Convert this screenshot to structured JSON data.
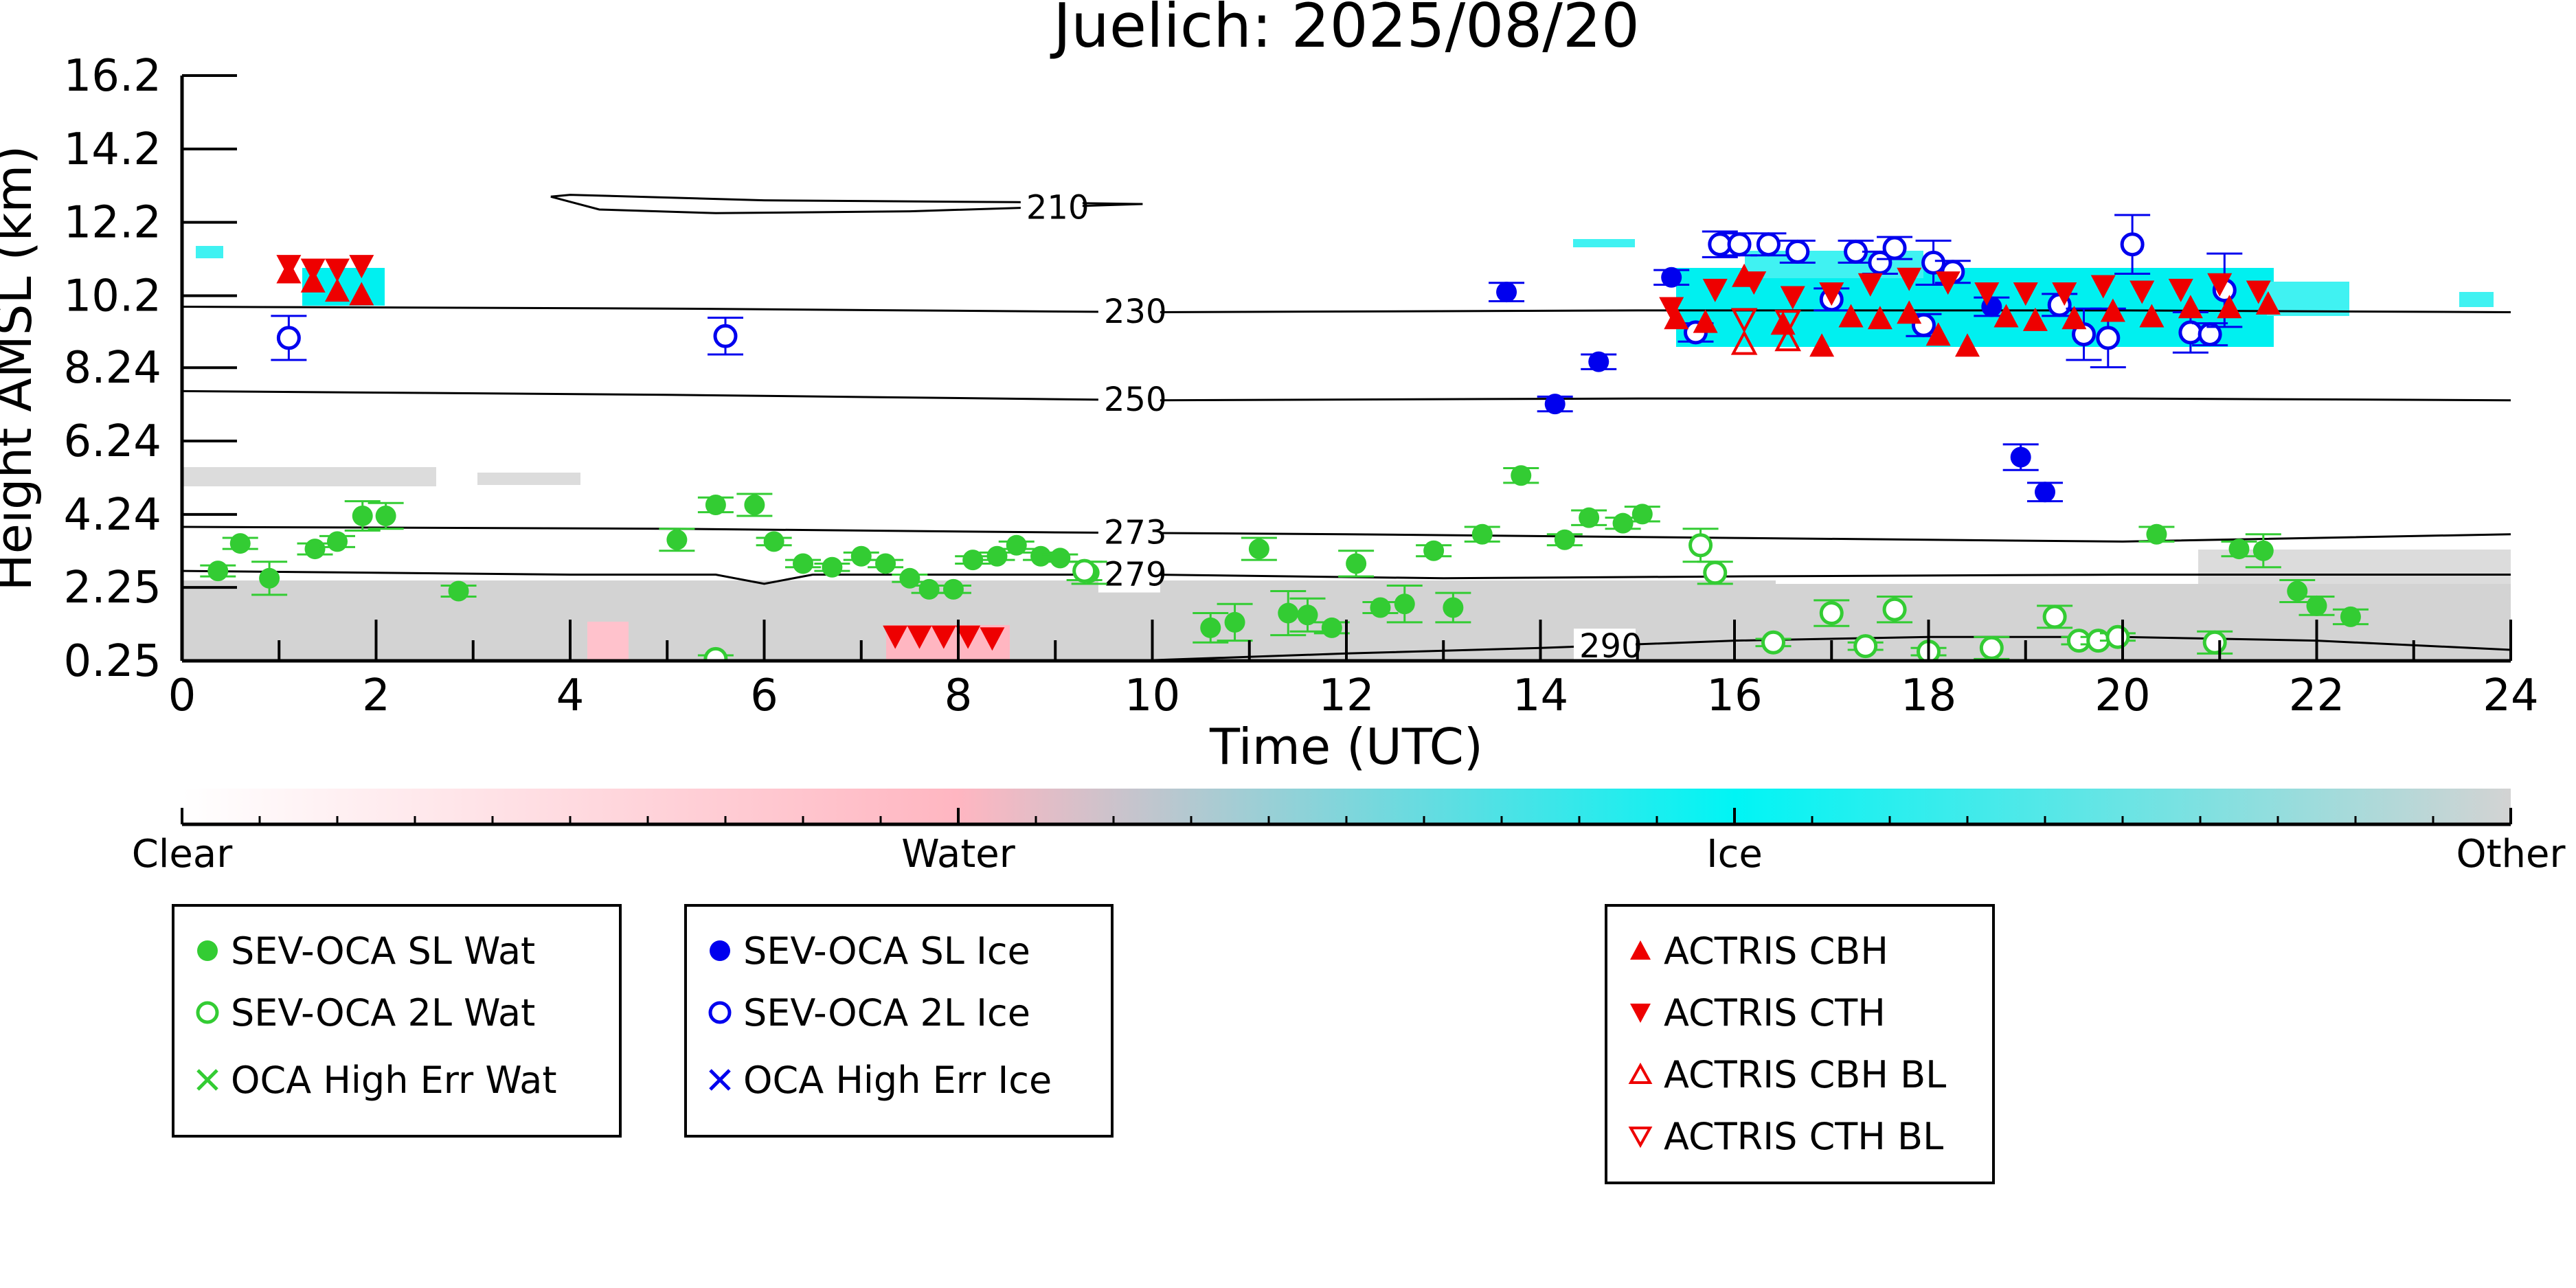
{
  "chart_data": {
    "type": "scatter",
    "title": "Juelich: 2025/08/20",
    "xlabel": "Time (UTC)",
    "ylabel": "Height AMSL (km)",
    "xlim": [
      0,
      24
    ],
    "ylim": [
      0.25,
      16.2
    ],
    "x_ticks": [
      0,
      2,
      4,
      6,
      8,
      10,
      12,
      14,
      16,
      18,
      20,
      22,
      24
    ],
    "y_ticks": [
      0.25,
      2.25,
      4.24,
      6.24,
      8.24,
      10.2,
      12.2,
      14.2,
      16.2
    ],
    "y_tick_labels": [
      "0.25",
      "2.25",
      "4.24",
      "6.24",
      "8.24",
      "10.2",
      "12.2",
      "14.2",
      "16.2"
    ],
    "grid": false,
    "colorbar": {
      "labels": [
        "Clear",
        "Water",
        "Ice",
        "Other"
      ],
      "colors": [
        "#ffffff",
        "#ffb6c1",
        "#00f5f5",
        "#d3d3d3"
      ]
    },
    "temperature_contours": [
      {
        "label": "210",
        "label_x": 8.7,
        "points": [
          [
            3.8,
            12.9
          ],
          [
            4.3,
            12.55
          ],
          [
            5.5,
            12.45
          ],
          [
            7.5,
            12.5
          ],
          [
            9.9,
            12.7
          ],
          [
            8.6,
            12.75
          ],
          [
            6.0,
            12.8
          ],
          [
            4.0,
            12.95
          ],
          [
            3.8,
            12.9
          ]
        ]
      },
      {
        "label": "230",
        "label_x": 9.5,
        "points": [
          [
            0,
            9.9
          ],
          [
            5,
            9.85
          ],
          [
            10,
            9.75
          ],
          [
            15,
            9.8
          ],
          [
            20,
            9.8
          ],
          [
            24,
            9.75
          ]
        ]
      },
      {
        "label": "250",
        "label_x": 9.5,
        "points": [
          [
            0,
            7.6
          ],
          [
            5,
            7.5
          ],
          [
            10,
            7.35
          ],
          [
            15,
            7.4
          ],
          [
            20,
            7.4
          ],
          [
            24,
            7.35
          ]
        ]
      },
      {
        "label": "273",
        "label_x": 9.5,
        "points": [
          [
            0,
            3.9
          ],
          [
            5,
            3.85
          ],
          [
            9,
            3.75
          ],
          [
            12,
            3.7
          ],
          [
            16,
            3.6
          ],
          [
            20,
            3.5
          ],
          [
            24,
            3.7
          ]
        ]
      },
      {
        "label": "279",
        "label_x": 9.5,
        "points": [
          [
            0,
            2.7
          ],
          [
            4,
            2.6
          ],
          [
            5.5,
            2.6
          ],
          [
            6,
            2.35
          ],
          [
            6.5,
            2.6
          ],
          [
            10,
            2.6
          ],
          [
            13,
            2.5
          ],
          [
            16,
            2.55
          ],
          [
            20,
            2.6
          ],
          [
            24,
            2.6
          ]
        ]
      },
      {
        "label": "290",
        "label_x": 14.4,
        "points": [
          [
            9.8,
            0.25
          ],
          [
            12,
            0.45
          ],
          [
            14,
            0.6
          ],
          [
            16,
            0.8
          ],
          [
            18,
            0.9
          ],
          [
            20,
            0.9
          ],
          [
            22,
            0.8
          ],
          [
            24,
            0.55
          ]
        ]
      }
    ],
    "series": [
      {
        "name": "SEV-OCA SL Wat",
        "marker": "filled-circle",
        "color": "#33cc33",
        "x": [
          0.37,
          0.6,
          0.9,
          1.37,
          1.6,
          1.86,
          2.1,
          2.85,
          5.1,
          5.5,
          5.9,
          6.1,
          6.4,
          6.7,
          7.0,
          7.25,
          7.5,
          7.7,
          7.95,
          8.15,
          8.4,
          8.6,
          8.85,
          9.05,
          9.35,
          10.6,
          10.85,
          11.1,
          11.4,
          11.6,
          11.85,
          12.1,
          12.35,
          12.6,
          12.9,
          13.1,
          13.4,
          13.8,
          14.25,
          14.5,
          14.85,
          15.05,
          20.35,
          21.2,
          21.45,
          21.8,
          22.0,
          22.35
        ],
        "y": [
          2.7,
          3.45,
          2.5,
          3.3,
          3.5,
          4.2,
          4.2,
          2.15,
          3.55,
          4.5,
          4.5,
          3.5,
          2.9,
          2.8,
          3.1,
          2.9,
          2.5,
          2.2,
          2.2,
          3.0,
          3.1,
          3.4,
          3.1,
          3.05,
          2.65,
          1.15,
          1.3,
          3.3,
          1.55,
          1.5,
          1.15,
          2.9,
          1.7,
          1.8,
          3.25,
          1.7,
          3.7,
          5.3,
          3.55,
          4.15,
          4.0,
          4.25,
          3.7,
          3.3,
          3.25,
          2.15,
          1.75,
          1.45
        ],
        "yerr": [
          0.15,
          0.15,
          0.45,
          0.15,
          0.15,
          0.4,
          0.35,
          0.15,
          0.3,
          0.2,
          0.3,
          0.1,
          0.1,
          0.1,
          0.1,
          0.1,
          0.1,
          0.1,
          0.1,
          0.1,
          0.1,
          0.1,
          0.1,
          0.1,
          0.3,
          0.4,
          0.5,
          0.3,
          0.6,
          0.45,
          0.15,
          0.35,
          0.15,
          0.5,
          0.15,
          0.4,
          0.2,
          0.2,
          0.15,
          0.2,
          0.15,
          0.2,
          0.2,
          0.2,
          0.45,
          0.3,
          0.25,
          0.2
        ]
      },
      {
        "name": "SEV-OCA 2L Wat",
        "marker": "open-circle",
        "color": "#33cc33",
        "x": [
          5.5,
          9.3,
          15.65,
          15.8,
          16.4,
          17.0,
          17.35,
          17.65,
          18.0,
          18.65,
          19.3,
          19.55,
          19.75,
          19.95,
          20.95
        ],
        "y": [
          0.3,
          2.7,
          3.4,
          2.65,
          0.75,
          1.55,
          0.65,
          1.65,
          0.5,
          0.6,
          1.45,
          0.8,
          0.8,
          0.9,
          0.75
        ],
        "yerr": [
          0.1,
          0.25,
          0.45,
          0.3,
          0.1,
          0.35,
          0.1,
          0.35,
          0.1,
          0.3,
          0.3,
          0.1,
          0.1,
          0.1,
          0.3
        ]
      },
      {
        "name": "OCA High Err Wat",
        "marker": "x",
        "color": "#33cc33",
        "x": [],
        "y": []
      },
      {
        "name": "SEV-OCA SL Ice",
        "marker": "filled-circle",
        "color": "#0000ee",
        "x": [
          13.65,
          14.15,
          14.6,
          15.35,
          18.65,
          18.95,
          19.2
        ],
        "y": [
          10.3,
          7.25,
          8.4,
          10.7,
          9.9,
          5.8,
          4.85
        ],
        "yerr": [
          0.25,
          0.2,
          0.2,
          0.2,
          0.25,
          0.35,
          0.25
        ]
      },
      {
        "name": "SEV-OCA 2L Ice",
        "marker": "open-circle",
        "color": "#0000ee",
        "x": [
          1.1,
          5.6,
          15.6,
          15.85,
          16.05,
          16.35,
          16.65,
          17.0,
          17.25,
          17.5,
          17.65,
          17.95,
          18.05,
          18.25,
          19.35,
          19.6,
          19.85,
          20.1,
          20.7,
          20.9,
          21.05
        ],
        "y": [
          9.05,
          9.1,
          9.2,
          11.6,
          11.6,
          11.6,
          11.4,
          10.1,
          11.4,
          11.1,
          11.5,
          9.4,
          11.1,
          10.85,
          9.95,
          9.15,
          9.05,
          11.6,
          9.2,
          9.15,
          10.35
        ],
        "yerr": [
          0.6,
          0.5,
          0.25,
          0.35,
          0.3,
          0.3,
          0.3,
          0.3,
          0.3,
          0.3,
          0.3,
          0.3,
          0.6,
          0.3,
          0.3,
          0.7,
          0.8,
          0.8,
          0.55,
          0.3,
          1.0
        ]
      },
      {
        "name": "OCA High Err Ice",
        "marker": "x",
        "color": "#0000ee",
        "x": [],
        "y": []
      },
      {
        "name": "ACTRIS CBH",
        "marker": "triangle-up",
        "color": "#ee0000",
        "x": [
          1.1,
          1.35,
          1.6,
          1.85,
          15.4,
          15.7,
          16.1,
          16.5,
          16.9,
          17.2,
          17.5,
          17.8,
          18.1,
          18.4,
          18.8,
          19.1,
          19.5,
          19.9,
          20.3,
          20.7,
          21.1,
          21.5
        ],
        "y": [
          10.8,
          10.55,
          10.3,
          10.2,
          9.55,
          9.45,
          10.7,
          9.4,
          8.8,
          9.6,
          9.55,
          9.7,
          9.1,
          8.8,
          9.6,
          9.5,
          9.55,
          9.75,
          9.6,
          9.85,
          9.85,
          9.95
        ]
      },
      {
        "name": "ACTRIS CTH",
        "marker": "triangle-down",
        "color": "#ee0000",
        "x": [
          1.1,
          1.35,
          1.6,
          1.85,
          7.35,
          7.6,
          7.85,
          8.1,
          8.35,
          15.35,
          15.8,
          16.2,
          16.6,
          17.0,
          17.4,
          17.8,
          18.2,
          18.6,
          19.0,
          19.4,
          19.8,
          20.2,
          20.6,
          21.0,
          21.4
        ],
        "y": [
          11.05,
          10.95,
          10.95,
          11.05,
          0.95,
          0.95,
          0.95,
          0.95,
          0.9,
          9.9,
          10.4,
          10.6,
          10.2,
          10.3,
          10.55,
          10.7,
          10.6,
          10.3,
          10.3,
          10.3,
          10.5,
          10.35,
          10.4,
          10.55,
          10.35
        ]
      },
      {
        "name": "ACTRIS CBH BL",
        "marker": "open-triangle-up",
        "color": "#ee0000",
        "x": [
          16.1,
          16.55
        ],
        "y": [
          8.85,
          8.95
        ]
      },
      {
        "name": "ACTRIS CTH BL",
        "marker": "open-triangle-down",
        "color": "#ee0000",
        "x": [
          16.1,
          16.55
        ],
        "y": [
          9.6,
          9.55
        ]
      }
    ]
  }
}
